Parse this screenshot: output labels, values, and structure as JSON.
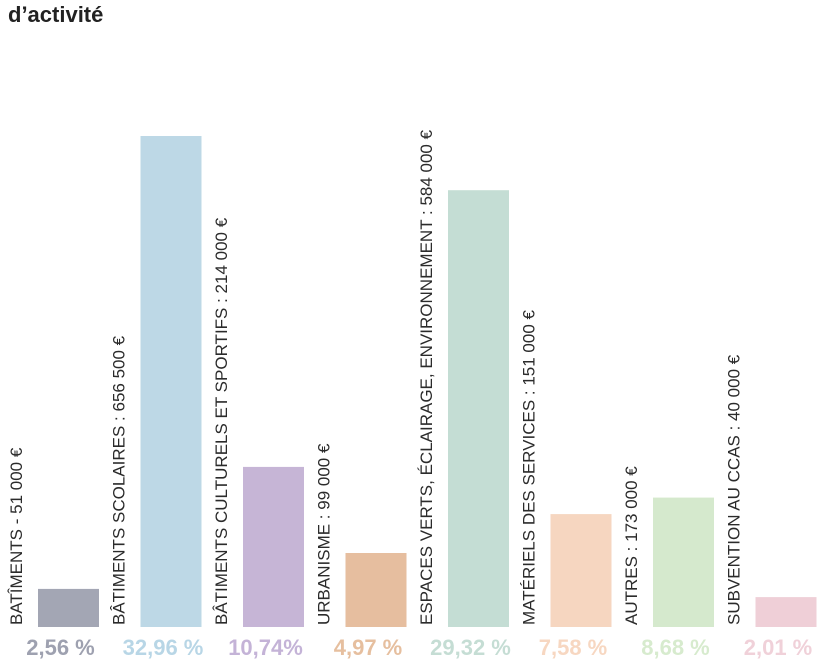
{
  "chart_data": {
    "type": "bar",
    "title": "d’activité",
    "xlabel": "",
    "ylabel": "",
    "ylim": [
      0,
      656500
    ],
    "grid": false,
    "legend": "none",
    "categories": [
      "BATÎMENTS - 51 000 €",
      "BÂTIMENTS SCOLAIRES : 656 500 €",
      "BÂTIMENTS CULTURELS  ET SPORTIFS : 214 000 €",
      "URBANISME : 99 000 €",
      "ESPACES VERTS, ÉCLAIRAGE, ENVIRONNEMENT : 584 000  €",
      "MATÉRIELS DES SERVICES : 151 000 €",
      "AUTRES : 173 000 €",
      "SUBVENTION AU CCAS : 40 000 €"
    ],
    "values": [
      51000,
      656500,
      214000,
      99000,
      584000,
      151000,
      173000,
      40000
    ],
    "percentages": [
      "2,56 %",
      "32,96 %",
      "10,74%",
      "4,97 %",
      "29,32 %",
      "7,58 %",
      "8,68 %",
      "2,01 %"
    ],
    "colors": [
      "#a3a6b4",
      "#bdd8e6",
      "#c6b5d6",
      "#e6be9f",
      "#c4ddd4",
      "#f6d6c0",
      "#d5e9cd",
      "#efcfd7"
    ],
    "pct_colors": [
      "#9ea1b0",
      "#b8d6e6",
      "#c4b3d7",
      "#e6bf9f",
      "#c5ddd4",
      "#f7d7c1",
      "#d7ebce",
      "#f0d1d9"
    ]
  }
}
